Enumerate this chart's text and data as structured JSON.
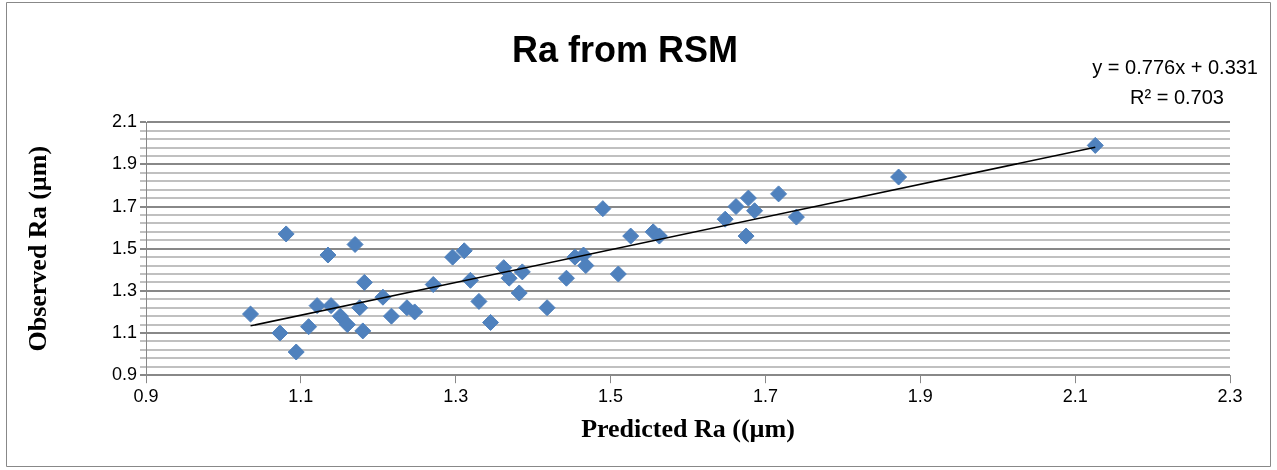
{
  "chart_data": {
    "type": "scatter",
    "title": "Ra from RSM",
    "xlabel": "Predicted Ra ((µm)",
    "ylabel": "Observed Ra (µm)",
    "annotations": [
      "y = 0.776x + 0.331",
      "R² = 0.703"
    ],
    "xlim": [
      0.9,
      2.3
    ],
    "xticks": [
      0.9,
      1.1,
      1.3,
      1.5,
      1.7,
      1.9,
      2.1,
      2.3
    ],
    "ylim": [
      0.9,
      2.1
    ],
    "yticks": [
      0.9,
      {
        "value": 0.94,
        "label": null
      },
      {
        "value": 0.98,
        "label": null
      },
      {
        "value": 1.02,
        "label": null
      },
      {
        "value": 1.06,
        "label": null
      },
      1.1,
      {
        "value": 1.14,
        "label": null
      },
      {
        "value": 1.18,
        "label": null
      },
      {
        "value": 1.22,
        "label": null
      },
      {
        "value": 1.26,
        "label": null
      },
      1.3,
      {
        "value": 1.34,
        "label": null
      },
      {
        "value": 1.38,
        "label": null
      },
      {
        "value": 1.42,
        "label": null
      },
      {
        "value": 1.46,
        "label": null
      },
      1.5,
      {
        "value": 1.54,
        "label": null
      },
      {
        "value": 1.58,
        "label": null
      },
      {
        "value": 1.62,
        "label": null
      },
      {
        "value": 1.66,
        "label": null
      },
      1.7,
      {
        "value": 1.74,
        "label": null
      },
      {
        "value": 1.78,
        "label": null
      },
      {
        "value": 1.82,
        "label": null
      },
      {
        "value": 1.86,
        "label": null
      },
      1.9,
      {
        "value": 1.94,
        "label": null
      },
      {
        "value": 1.98,
        "label": null
      },
      {
        "value": 2.02,
        "label": null
      },
      {
        "value": 2.06,
        "label": null
      },
      2.1
    ],
    "grid": "y",
    "legend": false,
    "marker": "diamond",
    "series": [
      {
        "color": "#4f81bd",
        "x": [
          1.035,
          1.081,
          1.073,
          1.094,
          1.11,
          1.121,
          1.135,
          1.139,
          1.151,
          1.16,
          1.17,
          1.176,
          1.182,
          1.18,
          1.206,
          1.217,
          1.237,
          1.247,
          1.271,
          1.296,
          1.311,
          1.319,
          1.33,
          1.345,
          1.362,
          1.369,
          1.386,
          1.382,
          1.418,
          1.443,
          1.454,
          1.465,
          1.468,
          1.49,
          1.51,
          1.526,
          1.555,
          1.563,
          1.648,
          1.662,
          1.678,
          1.675,
          1.686,
          1.717,
          1.74,
          1.872,
          2.126
        ],
        "values": [
          1.19,
          1.57,
          1.1,
          1.01,
          1.13,
          1.23,
          1.47,
          1.23,
          1.18,
          1.14,
          1.52,
          1.22,
          1.34,
          1.11,
          1.27,
          1.18,
          1.22,
          1.2,
          1.33,
          1.46,
          1.49,
          1.35,
          1.25,
          1.15,
          1.41,
          1.36,
          1.39,
          1.29,
          1.22,
          1.36,
          1.46,
          1.47,
          1.42,
          1.69,
          1.38,
          1.56,
          1.58,
          1.56,
          1.64,
          1.7,
          1.74,
          1.56,
          1.68,
          1.76,
          1.65,
          1.84,
          1.99
        ]
      },
      {
        "type": "line",
        "color": "#000000",
        "marker": "none",
        "line_style": "solid",
        "x": [
          1.035,
          2.126
        ],
        "values": [
          1.134,
          1.981
        ]
      }
    ]
  }
}
